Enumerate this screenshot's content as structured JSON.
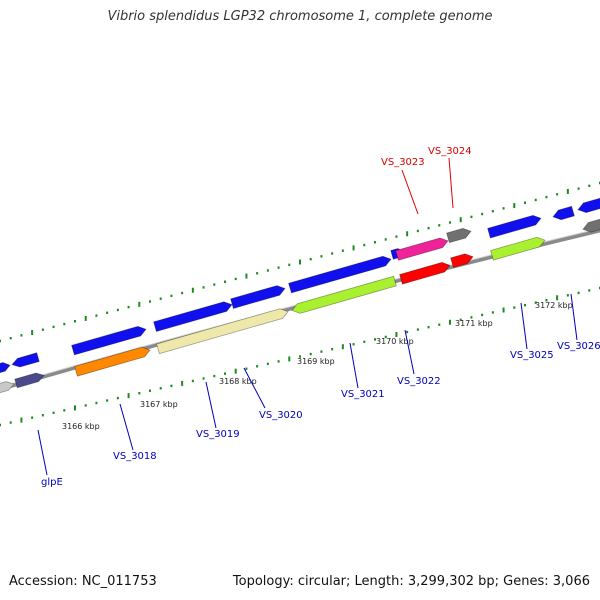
{
  "title": "Vibrio splendidus LGP32 chromosome 1, complete genome",
  "footer": {
    "accession": "Accession: NC_011753",
    "summary": "Topology: circular; Length: 3,299,302 bp; Genes: 3,066"
  },
  "ticks": [
    {
      "label": "3166 kbp"
    },
    {
      "label": "3167 kbp"
    },
    {
      "label": "3168 kbp"
    },
    {
      "label": "3169 kbp"
    },
    {
      "label": "3170 kbp"
    },
    {
      "label": "3171 kbp"
    },
    {
      "label": "3172 kbp"
    }
  ],
  "gene_labels": [
    {
      "name": "glpE",
      "color": "#0000bb"
    },
    {
      "name": "VS_3018",
      "color": "#0000bb"
    },
    {
      "name": "VS_3019",
      "color": "#0000bb"
    },
    {
      "name": "VS_3020",
      "color": "#0000bb"
    },
    {
      "name": "VS_3021",
      "color": "#0000bb"
    },
    {
      "name": "VS_3022",
      "color": "#0000bb"
    },
    {
      "name": "VS_3023",
      "color": "#dd0000"
    },
    {
      "name": "VS_3024",
      "color": "#dd0000"
    },
    {
      "name": "VS_3025",
      "color": "#0000bb"
    },
    {
      "name": "VS_3026",
      "color": "#0000bb"
    }
  ],
  "colors": {
    "backbone": "#8a8a8a",
    "tick": "#1f8a1f",
    "cds": "#1010ee",
    "orange": "#ff8800",
    "pale_yellow": "#eee8aa",
    "lime": "#a8f030",
    "pink": "#ee2299",
    "red": "#ff0000",
    "gray": "#707070",
    "slate": "#4a4a8a",
    "light_gray": "#c8c8c8"
  }
}
